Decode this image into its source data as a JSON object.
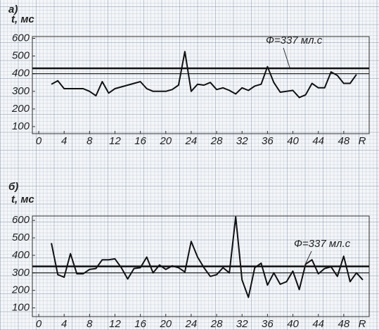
{
  "chart_data": [
    {
      "type": "line",
      "panel_label": "а)",
      "ylabel": "t, мс",
      "xlabel": "R",
      "annotation": "Ф=337 мл.с",
      "color": "#111111",
      "x": [
        2,
        3,
        4,
        5,
        6,
        7,
        8,
        9,
        10,
        11,
        12,
        13,
        14,
        15,
        16,
        17,
        18,
        19,
        20,
        21,
        22,
        23,
        24,
        25,
        26,
        27,
        28,
        29,
        30,
        31,
        32,
        33,
        34,
        35,
        36,
        37,
        38,
        39,
        40,
        41,
        42,
        43,
        44,
        45,
        46,
        47,
        48,
        49,
        50
      ],
      "values": [
        340,
        360,
        315,
        315,
        315,
        315,
        300,
        275,
        355,
        290,
        315,
        325,
        335,
        345,
        355,
        315,
        300,
        300,
        300,
        310,
        335,
        525,
        300,
        340,
        335,
        350,
        310,
        320,
        305,
        285,
        320,
        305,
        330,
        340,
        440,
        350,
        295,
        300,
        305,
        265,
        280,
        345,
        320,
        320,
        410,
        390,
        345,
        345,
        395
      ],
      "reference_lines": [
        430,
        400
      ],
      "xlim": [
        -1,
        52
      ],
      "ylim": [
        60,
        610
      ],
      "xticks": [
        0,
        4,
        8,
        12,
        16,
        20,
        24,
        28,
        32,
        36,
        40,
        44,
        48
      ],
      "yticks": [
        100,
        200,
        300,
        400,
        500,
        600
      ]
    },
    {
      "type": "line",
      "panel_label": "б)",
      "ylabel": "t, мс",
      "xlabel": "R",
      "annotation": "Ф=337 мл.с",
      "color": "#111111",
      "x": [
        2,
        3,
        4,
        5,
        6,
        7,
        8,
        9,
        10,
        11,
        12,
        13,
        14,
        15,
        16,
        17,
        18,
        19,
        20,
        21,
        22,
        23,
        24,
        25,
        26,
        27,
        28,
        29,
        30,
        31,
        32,
        33,
        34,
        35,
        36,
        37,
        38,
        39,
        40,
        41,
        42,
        43,
        44,
        45,
        46,
        47,
        48,
        49,
        50,
        51
      ],
      "values": [
        470,
        290,
        275,
        410,
        295,
        295,
        320,
        325,
        375,
        375,
        380,
        330,
        265,
        325,
        330,
        390,
        300,
        345,
        320,
        340,
        330,
        305,
        480,
        390,
        330,
        280,
        290,
        330,
        300,
        620,
        260,
        160,
        330,
        355,
        230,
        300,
        235,
        250,
        310,
        205,
        350,
        375,
        295,
        325,
        335,
        280,
        395,
        250,
        300,
        260
      ],
      "reference_lines": [
        337,
        300
      ],
      "xlim": [
        -1,
        52
      ],
      "ylim": [
        50,
        625
      ],
      "xticks": [
        0,
        4,
        8,
        12,
        16,
        20,
        24,
        28,
        32,
        36,
        40,
        44,
        48
      ],
      "yticks": [
        100,
        200,
        300,
        400,
        500,
        600
      ]
    }
  ]
}
